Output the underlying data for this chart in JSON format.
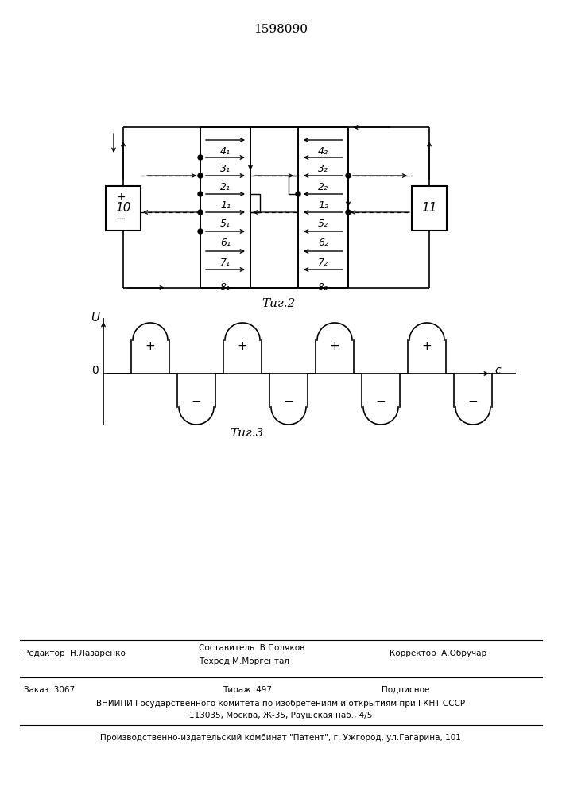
{
  "title": "1598090",
  "bg_color": "#ffffff",
  "line_color": "#000000",
  "fig2_caption": "Τиг.2",
  "fig3_caption": "Τиг.3",
  "U_label": "U",
  "C_label": "c",
  "zero_label": "0",
  "box10_label": "10",
  "box11_label": "11",
  "plus_label": "+",
  "minus_label": "-",
  "row_labels_left": [
    "4₁",
    "3₁",
    "2₁",
    "1₁",
    "5₁",
    "6₁",
    "7₁",
    "8₁"
  ],
  "row_labels_right": [
    "4₂",
    "3₂",
    "2₂",
    "1₂",
    "5₂",
    "6₂",
    "7₂",
    "8₂"
  ],
  "footer_col1_line1": "Редактор  Н.Лазаренко",
  "footer_col2_line1": "Составитель  В.Поляков",
  "footer_col2_line2": "Техред М.Моргентал",
  "footer_col3_line1": "Корректор  А.Обручар",
  "footer2_col1": "Заказ  3067",
  "footer2_col2": "Тираж  497",
  "footer2_col3": "Подписное",
  "footer3": "ВНИИПИ Государственного комитета по изобретениям и открытиям при ГКНТ СССР",
  "footer4": "113035, Москва, Ж-35, Раушская наб., 4/5",
  "footer5": "Производственно-издательский комбинат \"Патент\", г. Ужгород, ул.Гагарина, 101"
}
